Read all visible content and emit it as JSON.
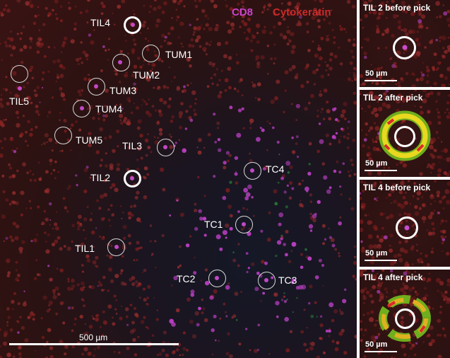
{
  "main_image": {
    "legend": {
      "cd8": "CD8",
      "cytokeratin": "Cytokeratin",
      "cd8_color": "#cc44cc",
      "cytokeratin_color": "#cc2a2a"
    },
    "labels": {
      "til1": "TIL1",
      "til2": "TIL2",
      "til3": "TIL3",
      "til4": "TIL4",
      "til5": "TIL5",
      "tum1": "TUM1",
      "tum2": "TUM2",
      "tum3": "TUM3",
      "tum4": "TUM4",
      "tum5": "TUM5",
      "tc1": "TC1",
      "tc2": "TC2",
      "tc3": "TC3",
      "tc4": "TC4"
    },
    "scalebar": "500 µm"
  },
  "insets": [
    {
      "title": "TIL 2 before pick",
      "scale": "50 µm"
    },
    {
      "title": "TIL 2 after pick",
      "scale": "50 µm"
    },
    {
      "title": "TIL 4 before pick",
      "scale": "50 µm"
    },
    {
      "title": "TIL 4 after pick",
      "scale": "50 µm"
    }
  ]
}
